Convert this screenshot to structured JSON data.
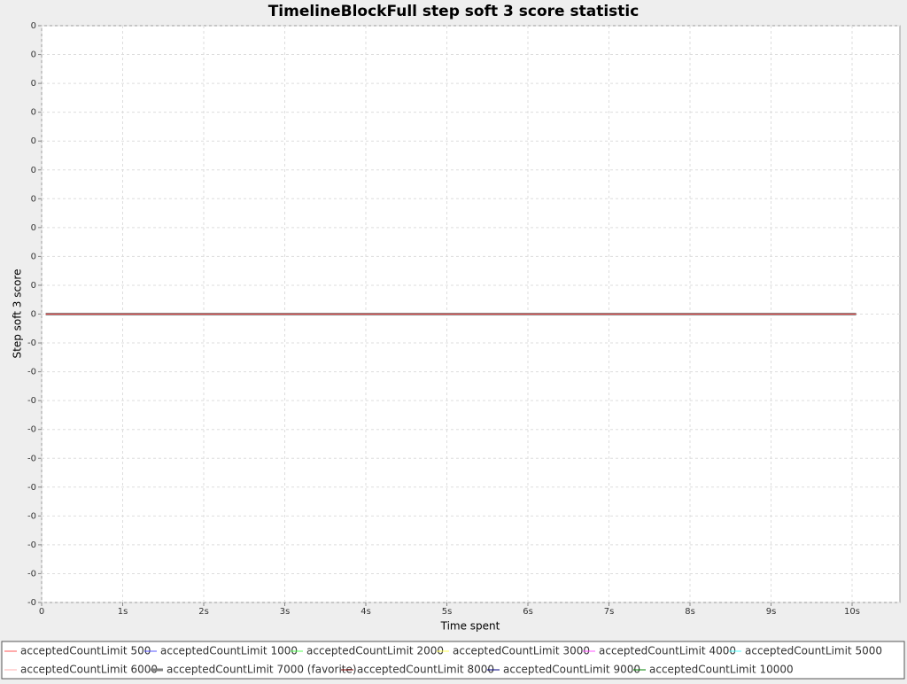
{
  "chart_data": {
    "type": "line",
    "title": "TimelineBlockFull step soft 3 score statistic",
    "xlabel": "Time spent",
    "ylabel": "Step soft 3 score",
    "x": [
      0.05,
      5,
      10.05
    ],
    "xlim": [
      0,
      10.59
    ],
    "xticks": [
      0,
      {
        "value": 1,
        "label": "1s"
      },
      {
        "value": 2,
        "label": "2s"
      },
      {
        "value": 3,
        "label": "3s"
      },
      {
        "value": 4,
        "label": "4s"
      },
      {
        "value": 5,
        "label": "5s"
      },
      {
        "value": 6,
        "label": "6s"
      },
      {
        "value": 7,
        "label": "7s"
      },
      {
        "value": 8,
        "label": "8s"
      },
      {
        "value": 9,
        "label": "9s"
      },
      {
        "value": 10,
        "label": "10s"
      }
    ],
    "ylim": [
      -0.001,
      0.001
    ],
    "yticks": [
      {
        "value": 0.001,
        "label": "0"
      },
      {
        "value": 0.0009,
        "label": "0"
      },
      {
        "value": 0.0008,
        "label": "0"
      },
      {
        "value": 0.0007,
        "label": "0"
      },
      {
        "value": 0.0006,
        "label": "0"
      },
      {
        "value": 0.0005,
        "label": "0"
      },
      {
        "value": 0.0004,
        "label": "0"
      },
      {
        "value": 0.0003,
        "label": "0"
      },
      {
        "value": 0.0002,
        "label": "0"
      },
      {
        "value": 0.0001,
        "label": "0"
      },
      0,
      {
        "value": -0.0001,
        "label": "-0"
      },
      {
        "value": -0.0002,
        "label": "-0"
      },
      {
        "value": -0.0003,
        "label": "-0"
      },
      {
        "value": -0.0004,
        "label": "-0"
      },
      {
        "value": -0.0005,
        "label": "-0"
      },
      {
        "value": -0.0006,
        "label": "-0"
      },
      {
        "value": -0.0007,
        "label": "-0"
      },
      {
        "value": -0.0008,
        "label": "-0"
      },
      {
        "value": -0.0009,
        "label": "-0"
      },
      {
        "value": -0.001,
        "label": "-0"
      }
    ],
    "grid": true,
    "legend": "bottom",
    "series": [
      {
        "name": "acceptedCountLimit 500",
        "color": "#ff5555",
        "values": [
          0,
          0,
          0
        ]
      },
      {
        "name": "acceptedCountLimit 1000",
        "color": "#5555ff",
        "values": [
          0,
          0,
          0
        ]
      },
      {
        "name": "acceptedCountLimit 2000",
        "color": "#55ff55",
        "values": [
          0,
          0,
          0
        ]
      },
      {
        "name": "acceptedCountLimit 3000",
        "color": "#ffff55",
        "values": [
          0,
          0,
          0
        ]
      },
      {
        "name": "acceptedCountLimit 4000",
        "color": "#ff55ff",
        "values": [
          0,
          0,
          0
        ]
      },
      {
        "name": "acceptedCountLimit 5000",
        "color": "#55ffff",
        "values": [
          0,
          0,
          0
        ]
      },
      {
        "name": "acceptedCountLimit 6000",
        "color": "#ffafaf",
        "values": [
          0,
          0,
          0
        ]
      },
      {
        "name": "acceptedCountLimit 7000 (favorite)",
        "color": "#808080",
        "values": [
          0,
          0,
          0
        ]
      },
      {
        "name": "acceptedCountLimit 8000",
        "color": "#800000",
        "values": [
          0,
          0,
          0
        ]
      },
      {
        "name": "acceptedCountLimit 9000",
        "color": "#000080",
        "values": [
          0,
          0,
          0
        ]
      },
      {
        "name": "acceptedCountLimit 10000",
        "color": "#008000",
        "values": [
          0,
          0,
          0
        ]
      }
    ]
  }
}
